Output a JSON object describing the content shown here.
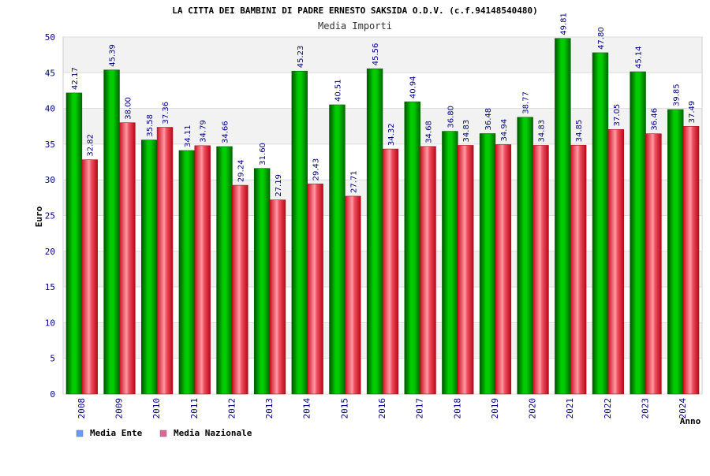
{
  "chart_data": {
    "type": "bar",
    "title": "LA CITTA DEI BAMBINI DI PADRE ERNESTO SAKSIDA O.D.V. (c.f.94148540480)",
    "subtitle": "Media Importi",
    "xlabel": "Anno",
    "ylabel": "Euro",
    "ylim": [
      0,
      50
    ],
    "yticks": [
      0,
      5,
      10,
      15,
      20,
      25,
      30,
      35,
      40,
      45,
      50
    ],
    "grid": true,
    "legend_position": "bottom-left",
    "categories": [
      "2008",
      "2009",
      "2010",
      "2011",
      "2012",
      "2013",
      "2014",
      "2015",
      "2016",
      "2017",
      "2018",
      "2019",
      "2020",
      "2021",
      "2022",
      "2023",
      "2024"
    ],
    "series": [
      {
        "name": "Media Ente",
        "color": "#00aa00",
        "legend_color": "#6699ff",
        "values": [
          42.17,
          45.39,
          35.58,
          34.11,
          34.66,
          31.6,
          45.23,
          40.51,
          45.56,
          40.94,
          36.8,
          36.48,
          38.77,
          49.81,
          47.8,
          45.14,
          39.85
        ],
        "labels": [
          "42.17",
          "45.39",
          "35.58",
          "34.11",
          "34.66",
          "31.60",
          "45.23",
          "40.51",
          "45.56",
          "40.94",
          "36.80",
          "36.48",
          "38.77",
          "49.81",
          "47.80",
          "45.14",
          "39.85"
        ]
      },
      {
        "name": "Media Nazionale",
        "color": "#e83040",
        "legend_color": "#dd6699",
        "values": [
          32.82,
          38.0,
          37.36,
          34.79,
          29.24,
          27.19,
          29.43,
          27.71,
          34.32,
          34.68,
          34.83,
          34.94,
          34.83,
          34.85,
          37.05,
          36.46,
          37.49
        ],
        "labels": [
          "32.82",
          "38.00",
          "37.36",
          "34.79",
          "29.24",
          "27.19",
          "29.43",
          "27.71",
          "34.32",
          "34.68",
          "34.83",
          "34.94",
          "34.83",
          "34.85",
          "37.05",
          "36.46",
          "37.49"
        ]
      }
    ]
  }
}
